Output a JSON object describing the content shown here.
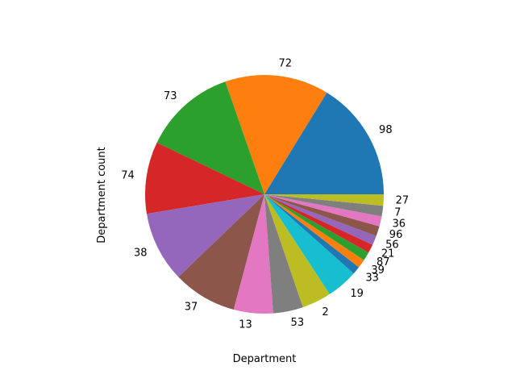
{
  "chart_data": {
    "type": "pie",
    "title": "",
    "xlabel": "Department",
    "ylabel": "Department count",
    "start_angle_deg": 0,
    "direction": "counterclockwise",
    "slices": [
      {
        "label": "98",
        "value": 180,
        "color": "#1f77b4"
      },
      {
        "label": "72",
        "value": 156,
        "color": "#ff7f0e"
      },
      {
        "label": "73",
        "value": 139,
        "color": "#2ca02c"
      },
      {
        "label": "74",
        "value": 108,
        "color": "#d62728"
      },
      {
        "label": "38",
        "value": 106,
        "color": "#9467bd"
      },
      {
        "label": "37",
        "value": 96,
        "color": "#8c564b"
      },
      {
        "label": "13",
        "value": 59,
        "color": "#e377c2"
      },
      {
        "label": "53",
        "value": 45,
        "color": "#7f7f7f"
      },
      {
        "label": "2",
        "value": 44,
        "color": "#bcbd22"
      },
      {
        "label": "19",
        "value": 47,
        "color": "#17becf"
      },
      {
        "label": "33",
        "value": 12,
        "color": "#1f77b4"
      },
      {
        "label": "39",
        "value": 13,
        "color": "#ff7f0e"
      },
      {
        "label": "87",
        "value": 13,
        "color": "#2ca02c"
      },
      {
        "label": "21",
        "value": 13,
        "color": "#d62728"
      },
      {
        "label": "56",
        "value": 14,
        "color": "#9467bd"
      },
      {
        "label": "96",
        "value": 15,
        "color": "#8c564b"
      },
      {
        "label": "36",
        "value": 15,
        "color": "#e377c2"
      },
      {
        "label": "7",
        "value": 16,
        "color": "#7f7f7f"
      },
      {
        "label": "27",
        "value": 17,
        "color": "#bcbd22"
      }
    ]
  }
}
